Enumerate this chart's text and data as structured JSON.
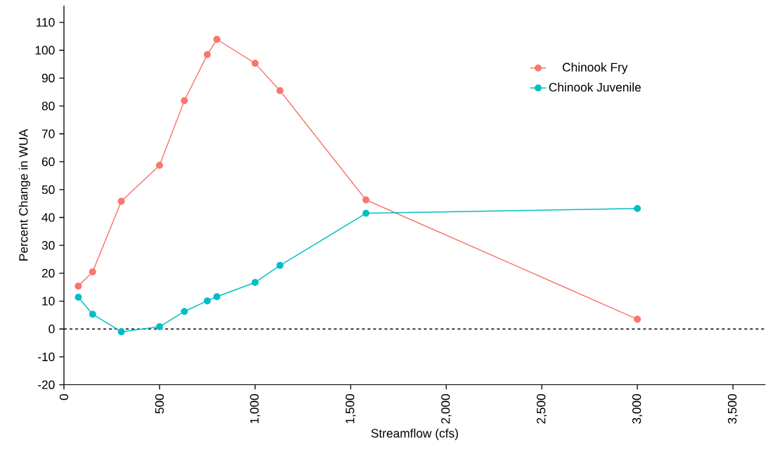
{
  "chart_data": {
    "type": "line",
    "xlabel": "Streamflow (cfs)",
    "ylabel": "Percent Change in WUA",
    "xlim": [
      0,
      3670
    ],
    "ylim": [
      -20,
      116
    ],
    "xticks": [
      0,
      {
        "value": 500,
        "label": "500"
      },
      {
        "value": 1000,
        "label": "1,000"
      },
      {
        "value": 1500,
        "label": "1,500"
      },
      {
        "value": 2000,
        "label": "2,000"
      },
      {
        "value": 2500,
        "label": "2,500"
      },
      {
        "value": 3000,
        "label": "3,000"
      },
      {
        "value": 3500,
        "label": "3,500"
      }
    ],
    "yticks": [
      -20,
      -10,
      0,
      10,
      20,
      30,
      40,
      50,
      60,
      70,
      80,
      90,
      100,
      110
    ],
    "x": [
      75,
      150,
      300,
      500,
      630,
      750,
      800,
      1000,
      1130,
      1580,
      3000
    ],
    "series": [
      {
        "name": "Chinook Fry",
        "color": "#f8766d",
        "values": [
          15.4,
          20.5,
          45.8,
          58.7,
          81.9,
          98.4,
          103.9,
          95.3,
          85.5,
          46.3,
          3.5
        ]
      },
      {
        "name": "Chinook Juvenile",
        "color": "#00bfc4",
        "values": [
          11.4,
          5.3,
          -1.0,
          0.8,
          6.3,
          10.1,
          11.6,
          16.7,
          22.8,
          41.5,
          43.2
        ]
      }
    ],
    "ref_lines": [
      {
        "axis": "y",
        "value": 0,
        "color": "#000000",
        "line_style": "dashed"
      }
    ],
    "legend": "top right",
    "marker": "circle",
    "line_style": "solid",
    "grid": false
  }
}
